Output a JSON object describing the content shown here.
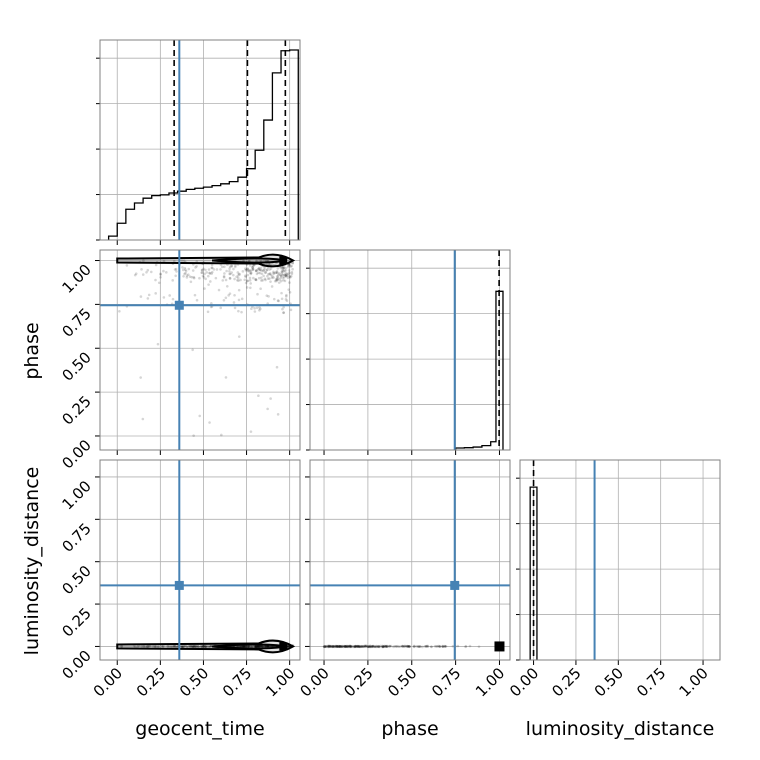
{
  "figure": {
    "type": "corner-plot"
  },
  "colors": {
    "truth": "#4682b4",
    "contour": "#000000",
    "points": "#000000",
    "grid": "#b0b0b0",
    "frame": "#808080"
  },
  "chart_data": {
    "type": "corner",
    "parameters": [
      "geocent_time",
      "phase",
      "luminosity_distance"
    ],
    "truths": {
      "geocent_time": 0.36,
      "phase": 0.745,
      "luminosity_distance": 0.36
    },
    "tick_labels": [
      "0.00",
      "0.25",
      "0.50",
      "0.75",
      "1.00"
    ],
    "axis_ranges": {
      "geocent_time": [
        -0.1,
        1.06
      ],
      "phase": [
        -0.08,
        1.06
      ],
      "luminosity_distance": [
        -0.08,
        1.1
      ]
    },
    "grid": true,
    "histograms": [
      {
        "parameter": "geocent_time",
        "bin_edges": [
          -0.05,
          0.0,
          0.05,
          0.1,
          0.15,
          0.2,
          0.25,
          0.3,
          0.35,
          0.4,
          0.45,
          0.5,
          0.55,
          0.6,
          0.65,
          0.7,
          0.75,
          0.8,
          0.85,
          0.9,
          0.95,
          1.0,
          1.05
        ],
        "counts": [
          0.05,
          0.4,
          0.78,
          0.95,
          1.08,
          1.15,
          1.17,
          1.22,
          1.27,
          1.32,
          1.35,
          1.38,
          1.42,
          1.47,
          1.53,
          1.65,
          1.88,
          2.38,
          3.2,
          4.48,
          5.08,
          5.1
        ],
        "quantiles": [
          0.33,
          0.755,
          0.975
        ],
        "ylim": [
          0,
          5.1
        ]
      },
      {
        "parameter": "phase",
        "bin_edges": [
          0.75,
          0.8,
          0.85,
          0.9,
          0.95,
          0.98,
          1.0,
          1.02
        ],
        "counts": [
          0.0,
          0.2,
          0.6,
          1.5,
          4.0,
          100.0,
          100.0
        ],
        "quantiles": [
          0.998
        ],
        "ylim": [
          0,
          120
        ]
      },
      {
        "parameter": "luminosity_distance",
        "bin_edges": [
          -0.02,
          -0.005,
          0.005,
          0.02
        ],
        "counts": [
          100.0,
          100.0,
          100.0
        ],
        "quantiles": [
          0.0
        ],
        "ylim": [
          0,
          110
        ]
      }
    ],
    "pairs": [
      {
        "x": "geocent_time",
        "y": "phase"
      },
      {
        "x": "geocent_time",
        "y": "luminosity_distance"
      },
      {
        "x": "phase",
        "y": "luminosity_distance"
      }
    ]
  }
}
